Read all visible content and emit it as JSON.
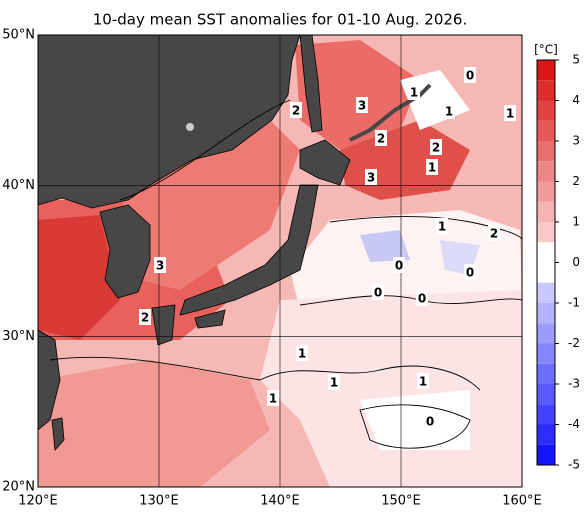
{
  "title": "10-day mean SST anomalies for 01-10 Aug. 2026.",
  "x_axis": {
    "ticks": [
      "120°E",
      "130°E",
      "140°E",
      "150°E",
      "160°E"
    ]
  },
  "y_axis": {
    "ticks": [
      "20°N",
      "30°N",
      "40°N",
      "50°N"
    ]
  },
  "colorbar": {
    "unit": "[°C]",
    "ticks": [
      5,
      4,
      3,
      2,
      1,
      0,
      -1,
      -2,
      -3,
      -4,
      -5
    ]
  },
  "contour_labels": [
    "0",
    "1",
    "1",
    "1",
    "2",
    "3",
    "2",
    "2",
    "1",
    "3",
    "1",
    "2",
    "0",
    "0",
    "3",
    "0",
    "0",
    "2",
    "1",
    "1",
    "1",
    "1",
    "0"
  ]
}
